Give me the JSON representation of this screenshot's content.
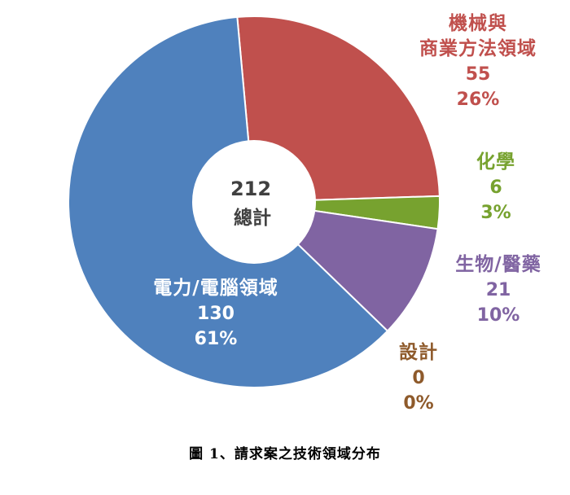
{
  "chart_data": {
    "type": "pie",
    "donut": true,
    "center": {
      "total": "212",
      "label": "總計"
    },
    "slices": [
      {
        "name_lines": [
          "電力/電腦領域"
        ],
        "value": 130,
        "percent": "61%",
        "color": "#4F81BD",
        "label_color": "#FFFFFF"
      },
      {
        "name_lines": [
          "機械與",
          "商業方法領域"
        ],
        "value": 55,
        "percent": "26%",
        "color": "#C0504D",
        "label_color": "#C0504D"
      },
      {
        "name_lines": [
          "化學"
        ],
        "value": 6,
        "percent": "3%",
        "color": "#77A22F",
        "label_color": "#77A22F"
      },
      {
        "name_lines": [
          "生物/醫藥"
        ],
        "value": 21,
        "percent": "10%",
        "color": "#8064A2",
        "label_color": "#8064A2"
      },
      {
        "name_lines": [
          "設計"
        ],
        "value": 0,
        "percent": "0%",
        "color": "#8E5A2B",
        "label_color": "#8E5A2B"
      }
    ]
  },
  "caption": "圖 1、請求案之技術領域分布"
}
